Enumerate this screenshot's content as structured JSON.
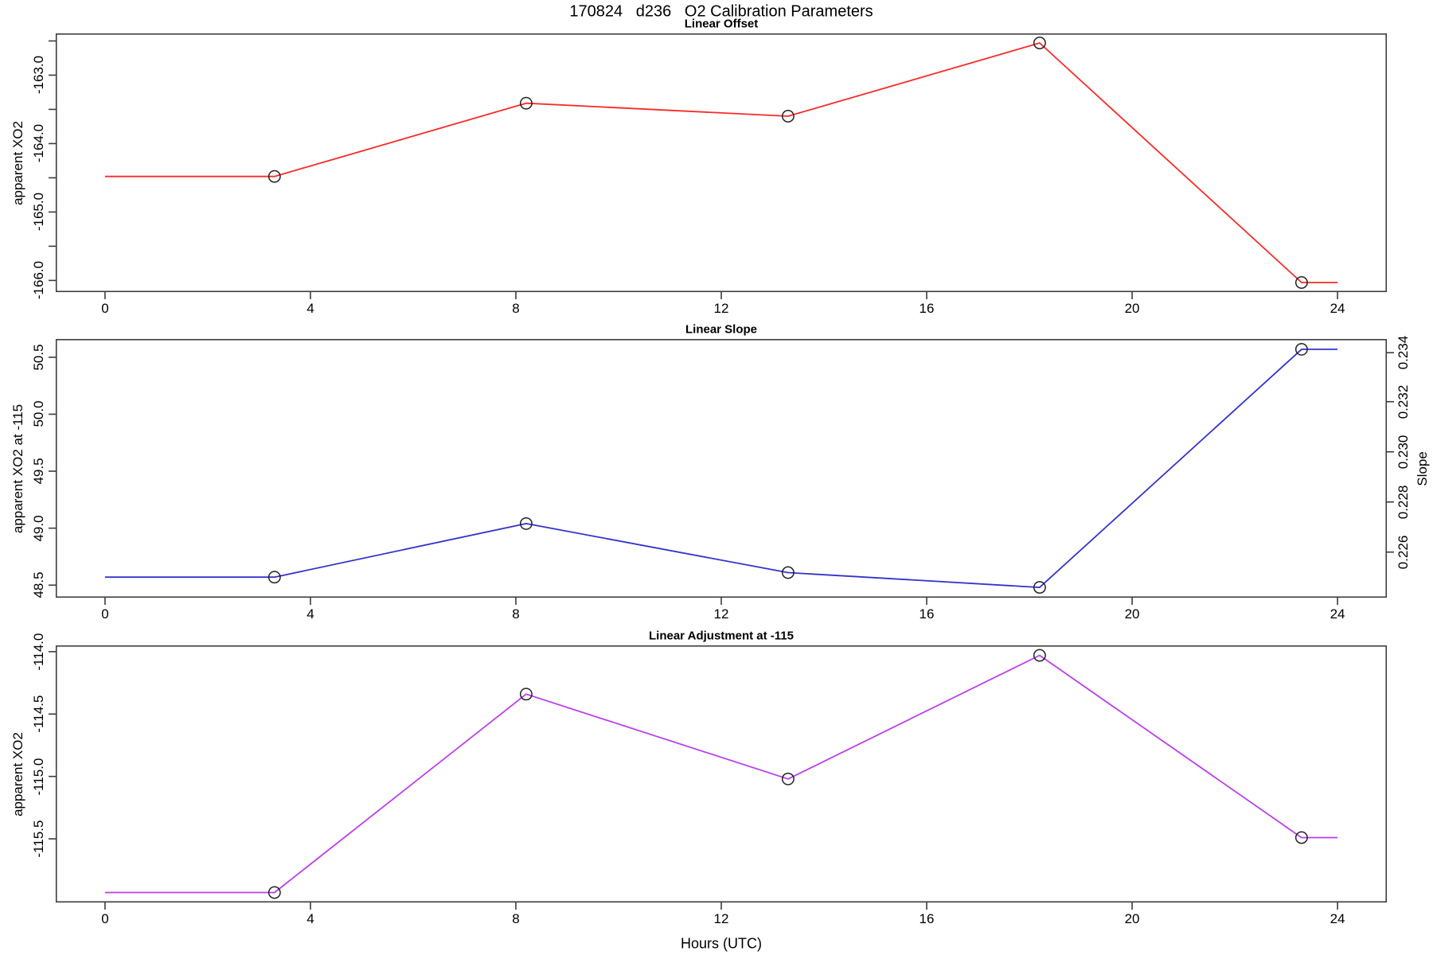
{
  "page_title": "170824   d236   O2 Calibration Parameters",
  "xlabel": "Hours (UTC)",
  "colors": {
    "offset_line": "#fa2a2a",
    "slope_line": "#3333cc",
    "adjustment_line": "#bb3fee",
    "marker_stroke": "#222222",
    "axis": "#3c3c3c",
    "text": "#000000",
    "background": "#ffffff"
  },
  "chart_data": [
    {
      "type": "line",
      "title": "Linear Offset",
      "ylabel": "apparent XO2",
      "line_color_key": "offset_line",
      "x": [
        0,
        3.3,
        8.2,
        13.3,
        18.2,
        23.3,
        24
      ],
      "values": [
        -164.48,
        -164.48,
        -163.41,
        -163.6,
        -162.53,
        -166.03,
        -166.03
      ],
      "marker_hours": [
        3.3,
        8.2,
        13.3,
        18.2,
        23.3
      ],
      "marker_values": [
        -164.48,
        -163.41,
        -163.6,
        -162.53,
        -166.03
      ],
      "xlim": [
        -0.96,
        24.96
      ],
      "ylim": [
        -166.17,
        -162.39
      ],
      "xticks": [
        0,
        4,
        8,
        12,
        16,
        20,
        24
      ],
      "xtick_labels": [
        "0",
        "4",
        "8",
        "12",
        "16",
        "20",
        "24"
      ],
      "yticks": [
        -166.0,
        -165.5,
        -165.0,
        -164.5,
        -164.0,
        -163.5,
        -163.0,
        -162.5
      ],
      "ytick_labels": [
        "-166.0",
        "",
        "-165.0",
        "",
        "-164.0",
        "",
        "-163.0",
        ""
      ],
      "grid": false,
      "legend": "none"
    },
    {
      "type": "line",
      "title": "Linear Slope",
      "ylabel": "apparent XO2 at -115",
      "line_color_key": "slope_line",
      "x": [
        0,
        3.3,
        8.2,
        13.3,
        18.2,
        23.3,
        24
      ],
      "values": [
        48.57,
        48.57,
        49.04,
        48.61,
        48.48,
        50.57,
        50.57
      ],
      "marker_hours": [
        3.3,
        8.2,
        13.3,
        18.2,
        23.3
      ],
      "marker_values": [
        48.57,
        49.04,
        48.61,
        48.48,
        50.57
      ],
      "xlim": [
        -0.96,
        24.96
      ],
      "ylim": [
        48.39,
        50.66
      ],
      "xticks": [
        0,
        4,
        8,
        12,
        16,
        20,
        24
      ],
      "xtick_labels": [
        "0",
        "4",
        "8",
        "12",
        "16",
        "20",
        "24"
      ],
      "yticks": [
        48.5,
        49.0,
        49.5,
        50.0,
        50.5
      ],
      "ytick_labels": [
        "48.5",
        "49.0",
        "49.5",
        "50.0",
        "50.5"
      ],
      "right_axis": {
        "label": "Slope",
        "tick_labels": [
          "0.226",
          "0.228",
          "0.230",
          "0.232",
          "0.234"
        ],
        "tick_values": [
          0.226,
          0.228,
          0.23,
          0.232,
          0.234
        ],
        "tick_positions_left_scale": [
          48.79,
          49.23,
          49.67,
          50.11,
          50.54
        ]
      },
      "grid": false,
      "legend": "none"
    },
    {
      "type": "line",
      "title": "Linear Adjustment at -115",
      "ylabel": "apparent XO2",
      "line_color_key": "adjustment_line",
      "x": [
        0,
        3.3,
        8.2,
        13.3,
        18.2,
        23.3,
        24
      ],
      "values": [
        -115.93,
        -115.93,
        -114.34,
        -115.02,
        -114.03,
        -115.49,
        -115.49
      ],
      "marker_hours": [
        3.3,
        8.2,
        13.3,
        18.2,
        23.3
      ],
      "marker_values": [
        -115.93,
        -114.34,
        -115.02,
        -114.03,
        -115.49
      ],
      "xlim": [
        -0.96,
        24.96
      ],
      "ylim": [
        -116.01,
        -113.95
      ],
      "xticks": [
        0,
        4,
        8,
        12,
        16,
        20,
        24
      ],
      "xtick_labels": [
        "0",
        "4",
        "8",
        "12",
        "16",
        "20",
        "24"
      ],
      "yticks": [
        -115.5,
        -115.0,
        -114.5,
        -114.0
      ],
      "ytick_labels": [
        "-115.5",
        "-115.0",
        "-114.5",
        "-114.0"
      ],
      "grid": false,
      "legend": "none"
    }
  ]
}
